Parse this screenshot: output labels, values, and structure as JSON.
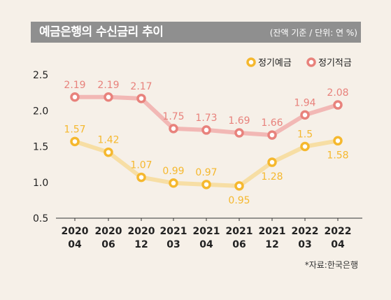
{
  "header": {
    "title": "예금은행의 수신금리 추이",
    "unit": "(잔액 기준 / 단위: 연 %)"
  },
  "source": "*자료:한국은행",
  "colors": {
    "deposit": "#f5b82e",
    "deposit_line": "#f7dea4",
    "savings": "#e8827c",
    "savings_line": "#f2b8b5",
    "header_bg": "#8f8f8f",
    "background": "#f6f0e8"
  },
  "chart_data": {
    "type": "line",
    "categories": [
      [
        "2020",
        "04"
      ],
      [
        "2020",
        "06"
      ],
      [
        "2020",
        "12"
      ],
      [
        "2021",
        "03"
      ],
      [
        "2021",
        "04"
      ],
      [
        "2021",
        "06"
      ],
      [
        "2021",
        "12"
      ],
      [
        "2022",
        "03"
      ],
      [
        "2022",
        "04"
      ]
    ],
    "yticks": [
      "2.5",
      "2.0",
      "1.5",
      "1.0",
      "0.5"
    ],
    "ylim": [
      0.5,
      2.5
    ],
    "legend_position": "top-right",
    "series": [
      {
        "name": "정기예금",
        "values": [
          1.57,
          1.42,
          1.07,
          0.99,
          0.97,
          0.95,
          1.28,
          1.5,
          1.58
        ],
        "labels": [
          "1.57",
          "1.42",
          "1.07",
          "0.99",
          "0.97",
          "0.95",
          "1.28",
          "1.5",
          "1.58"
        ]
      },
      {
        "name": "정기적금",
        "values": [
          2.19,
          2.19,
          2.17,
          1.75,
          1.73,
          1.69,
          1.66,
          1.94,
          2.08
        ],
        "labels": [
          "2.19",
          "2.19",
          "2.17",
          "1.75",
          "1.73",
          "1.69",
          "1.66",
          "1.94",
          "2.08"
        ]
      }
    ]
  }
}
